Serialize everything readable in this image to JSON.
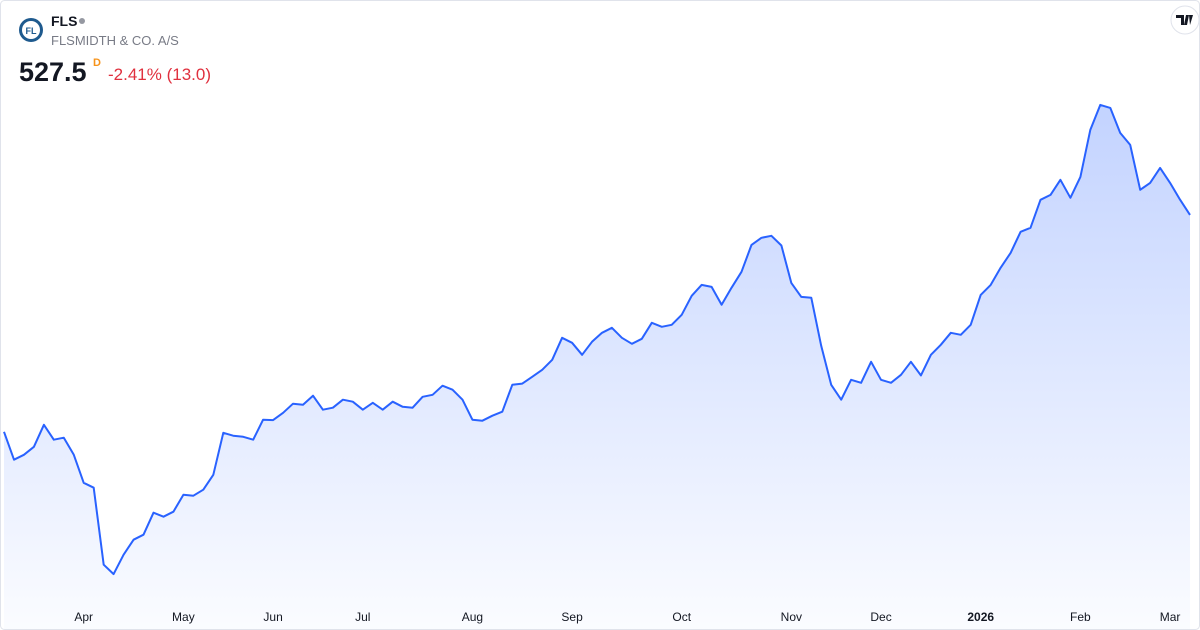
{
  "header": {
    "logo": "FL",
    "symbol": "FLS",
    "company": "FLSMIDTH & CO. A/S",
    "price": 527.5,
    "interval": "D",
    "change": "-2.41% (13.0)"
  },
  "chart_data": {
    "type": "area",
    "color": "#2962ff",
    "categories": [
      null,
      null,
      null,
      null,
      null,
      null,
      null,
      null,
      "Apr",
      null,
      null,
      null,
      null,
      null,
      null,
      null,
      null,
      null,
      "May",
      null,
      null,
      null,
      null,
      null,
      null,
      null,
      null,
      "Jun",
      null,
      null,
      null,
      null,
      null,
      null,
      null,
      null,
      "Jul",
      null,
      null,
      null,
      null,
      null,
      null,
      null,
      null,
      null,
      null,
      "Aug",
      null,
      null,
      null,
      null,
      null,
      null,
      null,
      null,
      null,
      "Sep",
      null,
      null,
      null,
      null,
      null,
      null,
      null,
      null,
      null,
      null,
      "Oct",
      null,
      null,
      null,
      null,
      null,
      null,
      null,
      null,
      null,
      null,
      "Nov",
      null,
      null,
      null,
      null,
      null,
      null,
      null,
      null,
      "Dec",
      null,
      null,
      null,
      null,
      null,
      null,
      null,
      null,
      null,
      "2026",
      null,
      null,
      null,
      null,
      null,
      null,
      null,
      null,
      null,
      "Feb",
      null,
      null,
      null,
      null,
      null,
      null,
      null,
      null,
      "Mar",
      null,
      null
    ],
    "values": [
      343.0,
      319.3,
      323.5,
      330.3,
      349.0,
      336.3,
      338.0,
      323.5,
      299.7,
      295.5,
      230.0,
      222.0,
      238.5,
      251.3,
      255.5,
      274.2,
      270.8,
      275.1,
      289.5,
      288.7,
      293.8,
      306.5,
      342.2,
      339.7,
      338.8,
      336.3,
      353.3,
      353.0,
      359.2,
      366.9,
      366.0,
      373.7,
      361.8,
      363.5,
      370.3,
      368.6,
      361.8,
      367.7,
      361.8,
      368.6,
      364.3,
      363.5,
      372.8,
      374.5,
      382.2,
      378.8,
      370.3,
      353.3,
      352.5,
      356.7,
      360.1,
      383.0,
      384.0,
      389.8,
      395.8,
      404.3,
      423.0,
      418.7,
      408.5,
      419.6,
      427.2,
      431.5,
      423.0,
      417.9,
      422.1,
      435.7,
      432.3,
      434.0,
      442.5,
      458.7,
      468.0,
      466.3,
      451.0,
      465.5,
      479.1,
      502.0,
      508.0,
      509.7,
      501.5,
      469.7,
      457.8,
      457.0,
      416.2,
      383.0,
      370.3,
      387.3,
      384.7,
      402.6,
      387.3,
      384.7,
      391.5,
      402.6,
      391.0,
      408.5,
      417.0,
      427.2,
      425.5,
      434.0,
      459.5,
      468.0,
      482.5,
      495.2,
      513.1,
      516.5,
      540.3,
      544.5,
      557.3,
      542.0,
      559.8,
      599.8,
      621.0,
      618.5,
      597.2,
      587.0,
      548.8,
      554.7,
      567.5,
      554.7,
      540.5,
      527.5
    ],
    "ylim": [
      200,
      640
    ]
  }
}
